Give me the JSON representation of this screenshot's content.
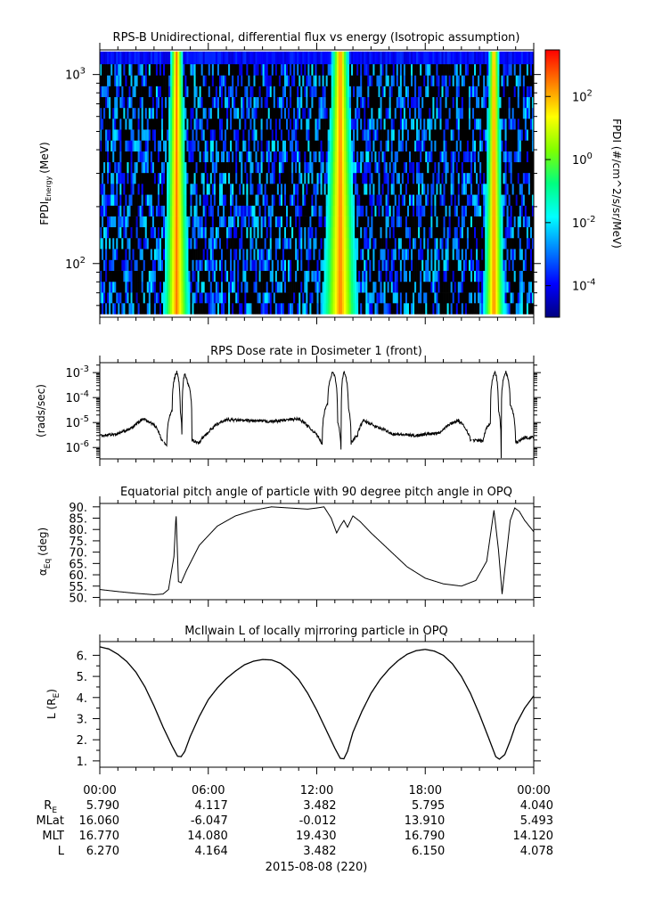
{
  "chart_data": [
    {
      "type": "heatmap",
      "title": "RPS-B  Unidirectional, differential flux vs energy (Isotropic assumption)",
      "ylabel_main": "FPDI",
      "ylabel_sub": "Energy",
      "ylabel_unit": "(MeV)",
      "yscale": "log",
      "ylim": [
        52,
        1350
      ],
      "yticks": [
        {
          "value": 100,
          "base": "10",
          "exp": "2"
        },
        {
          "value": 1000,
          "base": "10",
          "exp": "3"
        }
      ],
      "energy_channels": [
        58,
        66,
        75,
        86,
        98,
        112,
        128,
        146,
        167,
        190,
        217,
        248,
        283,
        323,
        368,
        420,
        480,
        548,
        625,
        713,
        814,
        929,
        1060,
        1220
      ],
      "belt_crossings_hours": [
        {
          "start": 3.5,
          "end": 5.0
        },
        {
          "start": 12.3,
          "end": 14.3
        },
        {
          "start": 21.2,
          "end": 22.4
        }
      ],
      "colorbar": {
        "label": "FPDI (#/cm^2/s/sr/MeV)",
        "scale": "log",
        "range": [
          1e-05,
          3000
        ],
        "ticks": [
          {
            "value": 0.0001,
            "base": "10",
            "exp": "-4"
          },
          {
            "value": 0.01,
            "base": "10",
            "exp": "-2"
          },
          {
            "value": 1,
            "base": "10",
            "exp": "0"
          },
          {
            "value": 100,
            "base": "10",
            "exp": "2"
          }
        ],
        "colors": [
          "#00007f",
          "#0000ff",
          "#0080ff",
          "#00ffff",
          "#00ff80",
          "#80ff00",
          "#ffff00",
          "#ff8000",
          "#ff0000"
        ]
      }
    },
    {
      "type": "line",
      "title": "RPS  Dose rate in Dosimeter 1 (front)",
      "ylabel": "(rads/sec)",
      "yscale": "log",
      "ylim": [
        3.5e-07,
        0.0025
      ],
      "yticks": [
        {
          "value": 1e-06,
          "base": "10",
          "exp": "-6"
        },
        {
          "value": 1e-05,
          "base": "10",
          "exp": "-5"
        },
        {
          "value": 0.0001,
          "base": "10",
          "exp": "-4"
        },
        {
          "value": 0.001,
          "base": "10",
          "exp": "-3"
        }
      ],
      "x_hours": [
        0,
        1.0,
        1.8,
        2.4,
        3.0,
        3.4,
        3.7,
        4.0,
        4.25,
        4.45,
        4.55,
        4.7,
        4.85,
        5.1,
        5.5,
        6.0,
        7.0,
        8.0,
        9.5,
        11.0,
        11.6,
        12.3,
        12.6,
        12.9,
        13.15,
        13.35,
        13.5,
        13.75,
        13.9,
        14.25,
        14.6,
        15.2,
        16.2,
        17.5,
        18.8,
        19.8,
        20.5,
        21.2,
        21.6,
        21.85,
        22.05,
        22.2,
        22.45,
        22.7,
        23.0,
        23.5,
        24.0
      ],
      "values": [
        3e-06,
        3.5e-06,
        6e-06,
        1.4e-05,
        8e-06,
        2e-06,
        1.2e-06,
        3e-05,
        0.0011,
        3e-05,
        4e-07,
        0.0009,
        0.0004,
        2e-06,
        1.5e-06,
        4e-06,
        1.3e-05,
        1.2e-05,
        1.1e-05,
        1.4e-05,
        6e-06,
        1.2e-06,
        6e-05,
        0.0011,
        1e-05,
        3e-07,
        0.0011,
        4e-05,
        1.5e-06,
        3e-06,
        1.2e-05,
        7e-06,
        3.5e-06,
        3e-06,
        4e-06,
        1.2e-05,
        2e-06,
        1.8e-06,
        1e-05,
        0.0011,
        3e-05,
        4e-07,
        0.0011,
        5e-05,
        1.5e-06,
        2.5e-06,
        2.5e-06
      ],
      "gaps_hours": [
        [
          3.48,
          3.52
        ],
        [
          20.58,
          20.62
        ]
      ]
    },
    {
      "type": "line",
      "title": "Equatorial pitch angle of particle with 90 degree pitch angle in OPQ",
      "ylabel_main": "α",
      "ylabel_sub": "Eq",
      "ylabel_unit": "(deg)",
      "ylim": [
        49,
        91.5
      ],
      "yticks": [
        "50.",
        "55.",
        "60.",
        "65.",
        "70.",
        "75.",
        "80.",
        "85.",
        "90."
      ],
      "x_hours": [
        0,
        1.0,
        2.0,
        3.0,
        3.5,
        3.8,
        4.1,
        4.22,
        4.35,
        4.5,
        4.8,
        5.5,
        6.5,
        7.5,
        8.5,
        9.5,
        10.5,
        11.5,
        12.0,
        12.4,
        12.8,
        13.1,
        13.3,
        13.5,
        13.7,
        14.0,
        14.4,
        15.0,
        16.0,
        17.0,
        18.0,
        19.0,
        20.0,
        20.8,
        21.4,
        21.8,
        22.05,
        22.25,
        22.45,
        22.7,
        22.95,
        23.2,
        23.5,
        24.0
      ],
      "values": [
        53.5,
        52.6,
        51.8,
        51.2,
        51.5,
        53.5,
        68.0,
        87.0,
        57.0,
        56.5,
        62.0,
        73.0,
        81.5,
        86.0,
        88.5,
        90.0,
        89.5,
        89.0,
        89.5,
        90.0,
        85.0,
        78.5,
        81.5,
        84.0,
        81.0,
        86.0,
        83.5,
        78.5,
        71.0,
        63.5,
        58.5,
        56.0,
        55.0,
        57.5,
        66.0,
        88.5,
        71.0,
        51.5,
        66.0,
        84.0,
        89.5,
        88.0,
        84.0,
        79.0
      ]
    },
    {
      "type": "line",
      "title": "McIlwain L of locally mirroring particle in OPQ",
      "ylabel_main": "L (R",
      "ylabel_sub": "E",
      "ylabel_unit": ")",
      "ylim": [
        0.7,
        6.65
      ],
      "yticks": [
        "1.",
        "2.",
        "3.",
        "4.",
        "5.",
        "6."
      ],
      "x_hours": [
        0,
        0.5,
        1.0,
        1.5,
        2.0,
        2.5,
        3.0,
        3.5,
        4.0,
        4.3,
        4.5,
        4.7,
        5.0,
        5.5,
        6.0,
        6.5,
        7.0,
        7.5,
        8.0,
        8.5,
        9.0,
        9.5,
        10.0,
        10.5,
        11.0,
        11.5,
        12.0,
        12.5,
        13.0,
        13.3,
        13.5,
        13.7,
        14.0,
        14.5,
        15.0,
        15.5,
        16.0,
        16.5,
        17.0,
        17.5,
        18.0,
        18.5,
        19.0,
        19.5,
        20.0,
        20.5,
        21.0,
        21.5,
        21.9,
        22.1,
        22.4,
        22.7,
        23.0,
        23.5,
        24.0
      ],
      "values": [
        6.4,
        6.3,
        6.05,
        5.7,
        5.2,
        4.5,
        3.6,
        2.6,
        1.7,
        1.22,
        1.2,
        1.45,
        2.15,
        3.1,
        3.9,
        4.45,
        4.9,
        5.25,
        5.55,
        5.72,
        5.8,
        5.78,
        5.62,
        5.3,
        4.85,
        4.2,
        3.4,
        2.5,
        1.6,
        1.12,
        1.1,
        1.45,
        2.35,
        3.35,
        4.2,
        4.85,
        5.35,
        5.75,
        6.05,
        6.22,
        6.28,
        6.2,
        6.0,
        5.6,
        5.0,
        4.2,
        3.2,
        2.1,
        1.2,
        1.08,
        1.3,
        1.95,
        2.7,
        3.5,
        4.08
      ]
    }
  ],
  "xaxis": {
    "range_hours": [
      0,
      24
    ],
    "tick_labels": [
      "00:00",
      "06:00",
      "12:00",
      "18:00",
      "00:00"
    ],
    "row_labels": [
      {
        "main": "R",
        "sub": "E"
      },
      {
        "main": "MLat",
        "sub": ""
      },
      {
        "main": "MLT",
        "sub": ""
      },
      {
        "main": "L",
        "sub": ""
      }
    ],
    "rows": [
      [
        "5.790",
        "4.117",
        "3.482",
        "5.795",
        "4.040"
      ],
      [
        "16.060",
        "-6.047",
        "-0.012",
        "13.910",
        "5.493"
      ],
      [
        "16.770",
        "14.080",
        "19.430",
        "16.790",
        "14.120"
      ],
      [
        "6.270",
        "4.164",
        "3.482",
        "6.150",
        "4.078"
      ]
    ],
    "date_label": "2015-08-08 (220)"
  }
}
